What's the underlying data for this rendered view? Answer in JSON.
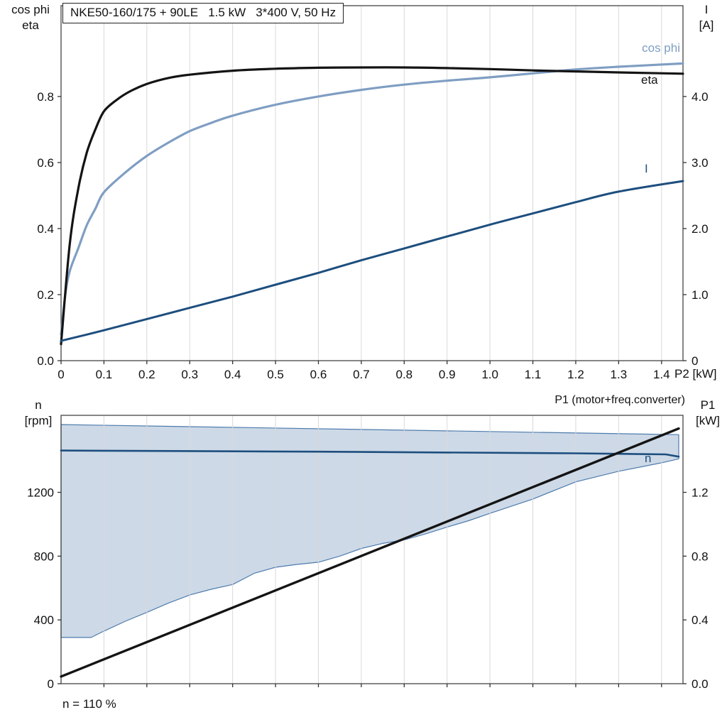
{
  "title_box": {
    "text": "NKE50-160/175 + 90LE   1.5 kW   3*400 V, 50 Hz"
  },
  "labels": {
    "top_left_line1": "cos phi",
    "top_left_line2": "eta",
    "top_right_line1": "I",
    "top_right_line2": "[A]",
    "x_axis_label": "P2 [kW]",
    "bottom_left_line1": "n",
    "bottom_left_line2": "[rpm]",
    "bottom_right_line1": "P1",
    "bottom_right_line2": "[kW]",
    "p1_annotation": "P1 (motor+freq.converter)",
    "curve_cos_phi": "cos phi",
    "curve_eta": "eta",
    "curve_current": "I",
    "curve_speed": "n",
    "footnote": "n = 110 %"
  },
  "colors": {
    "cos_phi": "#7f9ec2",
    "eta": "#141414",
    "current": "#1d4e7e",
    "speed": "#1d4e7e",
    "p1": "#141414",
    "band_fill": "#cdd9e7",
    "band_stroke": "#4e7bac",
    "grid": "#d9d9d9",
    "frame": "#444444"
  },
  "chart_data": [
    {
      "id": "top",
      "type": "line",
      "title": "NKE50-160/175 + 90LE   1.5 kW   3*400 V, 50 Hz",
      "xlabel": "P2 [kW]",
      "ylabel_left": "cos phi / eta",
      "ylabel_right": "I [A]",
      "xlim": [
        0,
        1.45
      ],
      "ylim_left": [
        0,
        1.075
      ],
      "ylim_right": [
        0,
        5.375
      ],
      "grid": "vertical",
      "legend_position": "right-edge-labels",
      "x_ticks": [
        {
          "v": 0,
          "t": "0"
        },
        {
          "v": 0.1,
          "t": "0.1"
        },
        {
          "v": 0.2,
          "t": "0.2"
        },
        {
          "v": 0.3,
          "t": "0.3"
        },
        {
          "v": 0.4,
          "t": "0.4"
        },
        {
          "v": 0.5,
          "t": "0.5"
        },
        {
          "v": 0.6,
          "t": "0.6"
        },
        {
          "v": 0.7,
          "t": "0.7"
        },
        {
          "v": 0.8,
          "t": "0.8"
        },
        {
          "v": 0.9,
          "t": "0.9"
        },
        {
          "v": 1.0,
          "t": "1.0"
        },
        {
          "v": 1.1,
          "t": "1.1"
        },
        {
          "v": 1.2,
          "t": "1.2"
        },
        {
          "v": 1.3,
          "t": "1.3"
        },
        {
          "v": 1.4,
          "t": "1.4"
        }
      ],
      "y_ticks_left": [
        {
          "v": 0,
          "t": "0.0"
        },
        {
          "v": 0.2,
          "t": "0.2"
        },
        {
          "v": 0.4,
          "t": "0.4"
        },
        {
          "v": 0.6,
          "t": "0.6"
        },
        {
          "v": 0.8,
          "t": "0.8"
        }
      ],
      "y_ticks_right": [
        {
          "v": 0,
          "t": "0"
        },
        {
          "v": 1,
          "t": "1.0"
        },
        {
          "v": 2,
          "t": "2.0"
        },
        {
          "v": 3,
          "t": "3.0"
        },
        {
          "v": 4,
          "t": "4.0"
        }
      ],
      "series": [
        {
          "name": "cos phi",
          "kind": "line",
          "axis": "left",
          "color": "#7f9ec2",
          "width": 3.2,
          "smooth": true,
          "points": [
            [
              0,
              0.08
            ],
            [
              0.01,
              0.2
            ],
            [
              0.02,
              0.27
            ],
            [
              0.04,
              0.34
            ],
            [
              0.06,
              0.41
            ],
            [
              0.08,
              0.46
            ],
            [
              0.1,
              0.51
            ],
            [
              0.15,
              0.57
            ],
            [
              0.2,
              0.62
            ],
            [
              0.25,
              0.66
            ],
            [
              0.3,
              0.695
            ],
            [
              0.35,
              0.72
            ],
            [
              0.4,
              0.742
            ],
            [
              0.5,
              0.775
            ],
            [
              0.6,
              0.8
            ],
            [
              0.7,
              0.82
            ],
            [
              0.8,
              0.836
            ],
            [
              0.9,
              0.848
            ],
            [
              1.0,
              0.858
            ],
            [
              1.1,
              0.87
            ],
            [
              1.2,
              0.882
            ],
            [
              1.3,
              0.89
            ],
            [
              1.45,
              0.9
            ]
          ]
        },
        {
          "name": "eta",
          "kind": "line",
          "axis": "left",
          "color": "#141414",
          "width": 3.2,
          "smooth": true,
          "points": [
            [
              0,
              0.05
            ],
            [
              0.02,
              0.35
            ],
            [
              0.04,
              0.52
            ],
            [
              0.06,
              0.63
            ],
            [
              0.08,
              0.7
            ],
            [
              0.1,
              0.755
            ],
            [
              0.13,
              0.79
            ],
            [
              0.16,
              0.815
            ],
            [
              0.2,
              0.838
            ],
            [
              0.25,
              0.856
            ],
            [
              0.3,
              0.866
            ],
            [
              0.4,
              0.878
            ],
            [
              0.5,
              0.884
            ],
            [
              0.6,
              0.887
            ],
            [
              0.7,
              0.888
            ],
            [
              0.8,
              0.888
            ],
            [
              0.9,
              0.886
            ],
            [
              1.0,
              0.883
            ],
            [
              1.1,
              0.879
            ],
            [
              1.2,
              0.876
            ],
            [
              1.3,
              0.873
            ],
            [
              1.45,
              0.869
            ]
          ]
        },
        {
          "name": "I",
          "kind": "line",
          "axis": "right",
          "color": "#1d4e7e",
          "width": 3.0,
          "smooth": true,
          "points": [
            [
              0,
              0.3
            ],
            [
              0.1,
              0.46
            ],
            [
              0.2,
              0.63
            ],
            [
              0.3,
              0.8
            ],
            [
              0.4,
              0.97
            ],
            [
              0.5,
              1.15
            ],
            [
              0.6,
              1.33
            ],
            [
              0.7,
              1.52
            ],
            [
              0.8,
              1.7
            ],
            [
              0.9,
              1.88
            ],
            [
              1.0,
              2.06
            ],
            [
              1.1,
              2.23
            ],
            [
              1.2,
              2.4
            ],
            [
              1.3,
              2.56
            ],
            [
              1.45,
              2.72
            ]
          ]
        }
      ]
    },
    {
      "id": "bottom",
      "type": "line",
      "title": "",
      "xlabel": "",
      "ylabel_left": "n [rpm]",
      "ylabel_right": "P1 [kW]",
      "annotation": "P1 (motor+freq.converter)",
      "footnote": "n = 110 %",
      "xlim": [
        0,
        1.45
      ],
      "ylim_left": [
        0,
        1683
      ],
      "ylim_right": [
        0,
        1.683
      ],
      "grid": "vertical",
      "x_ticks": [
        {
          "v": 0.1,
          "t": ""
        },
        {
          "v": 0.2,
          "t": ""
        },
        {
          "v": 0.3,
          "t": ""
        },
        {
          "v": 0.4,
          "t": ""
        },
        {
          "v": 0.5,
          "t": ""
        },
        {
          "v": 0.6,
          "t": ""
        },
        {
          "v": 0.7,
          "t": ""
        },
        {
          "v": 0.8,
          "t": ""
        },
        {
          "v": 0.9,
          "t": ""
        },
        {
          "v": 1.0,
          "t": ""
        },
        {
          "v": 1.1,
          "t": ""
        },
        {
          "v": 1.2,
          "t": ""
        },
        {
          "v": 1.3,
          "t": ""
        },
        {
          "v": 1.4,
          "t": ""
        }
      ],
      "y_ticks_left": [
        {
          "v": 0,
          "t": "0"
        },
        {
          "v": 400,
          "t": "400"
        },
        {
          "v": 800,
          "t": "800"
        },
        {
          "v": 1200,
          "t": "1200"
        }
      ],
      "y_ticks_right": [
        {
          "v": 0,
          "t": "0.0"
        },
        {
          "v": 0.4,
          "t": "0.4"
        },
        {
          "v": 0.8,
          "t": "0.8"
        },
        {
          "v": 1.2,
          "t": "1.2"
        }
      ],
      "series": [
        {
          "name": "speed operating range",
          "kind": "band",
          "axis": "left",
          "color_fill": "#cdd9e7",
          "color_stroke": "#4e7bac",
          "upper": [
            [
              0,
              1625
            ],
            [
              1.44,
              1562
            ]
          ],
          "lower": [
            [
              0,
              290
            ],
            [
              0.07,
              290
            ],
            [
              0.1,
              330
            ],
            [
              0.15,
              392
            ],
            [
              0.2,
              447
            ],
            [
              0.25,
              505
            ],
            [
              0.3,
              556
            ],
            [
              0.35,
              592
            ],
            [
              0.4,
              622
            ],
            [
              0.45,
              692
            ],
            [
              0.5,
              730
            ],
            [
              0.55,
              748
            ],
            [
              0.6,
              762
            ],
            [
              0.65,
              800
            ],
            [
              0.7,
              848
            ],
            [
              0.75,
              880
            ],
            [
              0.8,
              902
            ],
            [
              0.85,
              940
            ],
            [
              0.9,
              982
            ],
            [
              0.95,
              1022
            ],
            [
              1.0,
              1068
            ],
            [
              1.1,
              1158
            ],
            [
              1.2,
              1266
            ],
            [
              1.3,
              1332
            ],
            [
              1.4,
              1385
            ],
            [
              1.44,
              1410
            ]
          ]
        },
        {
          "name": "n",
          "kind": "line",
          "axis": "left",
          "color": "#1d4e7e",
          "width": 2.6,
          "smooth": false,
          "points": [
            [
              0,
              1462
            ],
            [
              0.6,
              1455
            ],
            [
              1.2,
              1445
            ],
            [
              1.41,
              1438
            ],
            [
              1.44,
              1424
            ]
          ]
        },
        {
          "name": "P1 (motor+freq.converter)",
          "kind": "line",
          "axis": "right",
          "color": "#141414",
          "width": 3.4,
          "smooth": false,
          "points": [
            [
              0,
              0.045
            ],
            [
              1.44,
              1.6
            ]
          ]
        }
      ]
    }
  ]
}
